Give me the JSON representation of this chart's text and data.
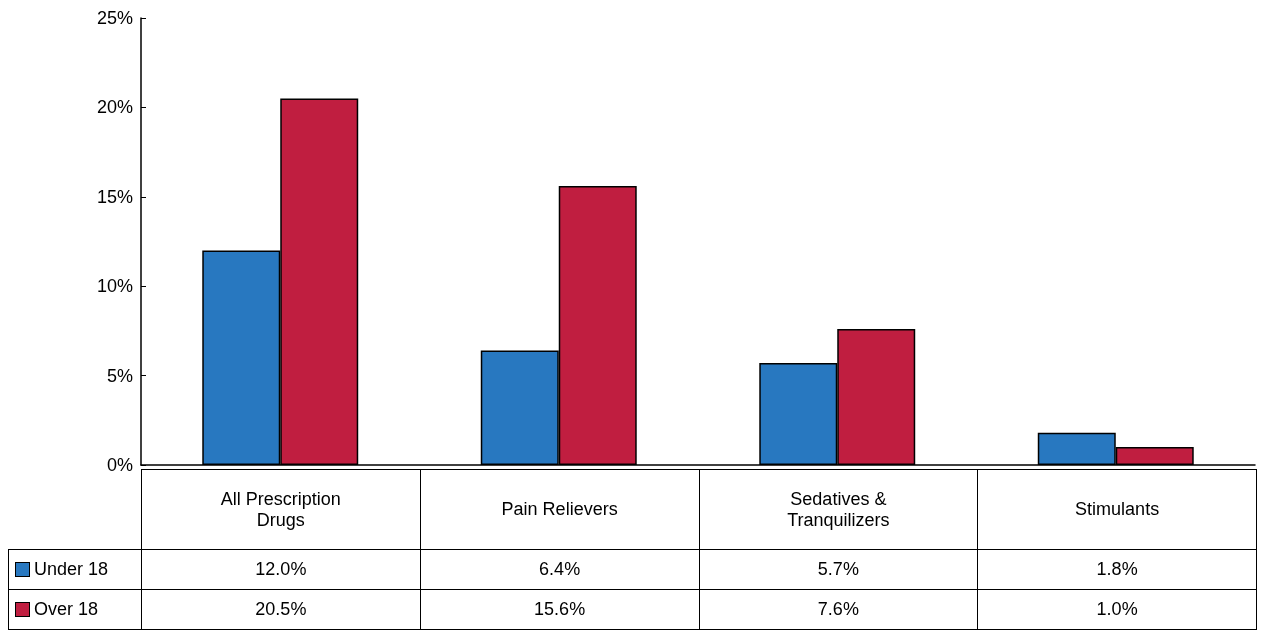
{
  "chart_data": {
    "type": "bar",
    "categories": [
      "All Prescription Drugs",
      "Pain Relievers",
      "Sedatives & Tranquilizers",
      "Stimulants"
    ],
    "series": [
      {
        "name": "Under 18",
        "color": "#2878c0",
        "values": [
          12.0,
          6.4,
          5.7,
          1.8
        ],
        "value_labels": [
          "12.0%",
          "6.4%",
          "5.7%",
          "1.8%"
        ]
      },
      {
        "name": "Over 18",
        "color": "#c01e40",
        "values": [
          20.5,
          15.6,
          7.6,
          1.0
        ],
        "value_labels": [
          "20.5%",
          "15.6%",
          "7.6%",
          "1.0%"
        ]
      }
    ],
    "ylim": [
      0,
      25
    ],
    "yticks": [
      {
        "value": 0,
        "label": "0%"
      },
      {
        "value": 5,
        "label": "5%"
      },
      {
        "value": 10,
        "label": "10%"
      },
      {
        "value": 15,
        "label": "15%"
      },
      {
        "value": 20,
        "label": "20%"
      },
      {
        "value": 25,
        "label": "25%"
      }
    ],
    "grid": false,
    "legend": "bottom"
  }
}
